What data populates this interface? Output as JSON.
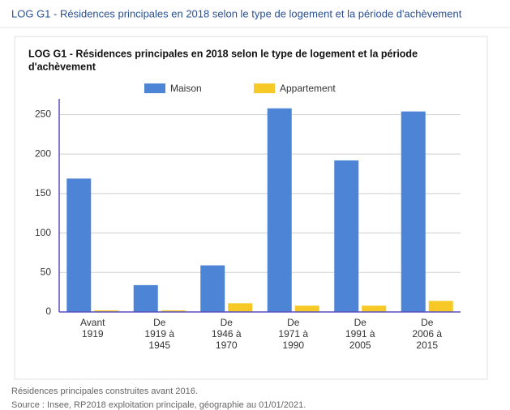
{
  "header": {
    "title": "LOG G1 - Résidences principales en 2018 selon le type de logement et la période d'achèvement"
  },
  "chart_data": {
    "type": "bar",
    "title": [
      "LOG G1 - Résidences principales en 2018 selon le type de logement et la période",
      "d'achèvement"
    ],
    "categories": [
      [
        "Avant",
        "1919"
      ],
      [
        "De",
        "1919 à",
        "1945"
      ],
      [
        "De",
        "1946 à",
        "1970"
      ],
      [
        "De",
        "1971 à",
        "1990"
      ],
      [
        "De",
        "1991 à",
        "2005"
      ],
      [
        "De",
        "2006 à",
        "2015"
      ]
    ],
    "series": [
      {
        "name": "Maison",
        "color": "#4e84d6",
        "values": [
          169,
          34,
          59,
          258,
          192,
          254
        ]
      },
      {
        "name": "Appartement",
        "color": "#f7c927",
        "values": [
          2,
          2,
          11,
          8,
          8,
          14
        ]
      }
    ],
    "ylim": [
      0,
      270
    ],
    "yticks": [
      0,
      50,
      100,
      150,
      200,
      250
    ],
    "grid": true
  },
  "footer": {
    "notes": [
      "Résidences principales construites avant 2016.",
      "Source : Insee, RP2018 exploitation principale, géographie au 01/01/2021."
    ]
  }
}
